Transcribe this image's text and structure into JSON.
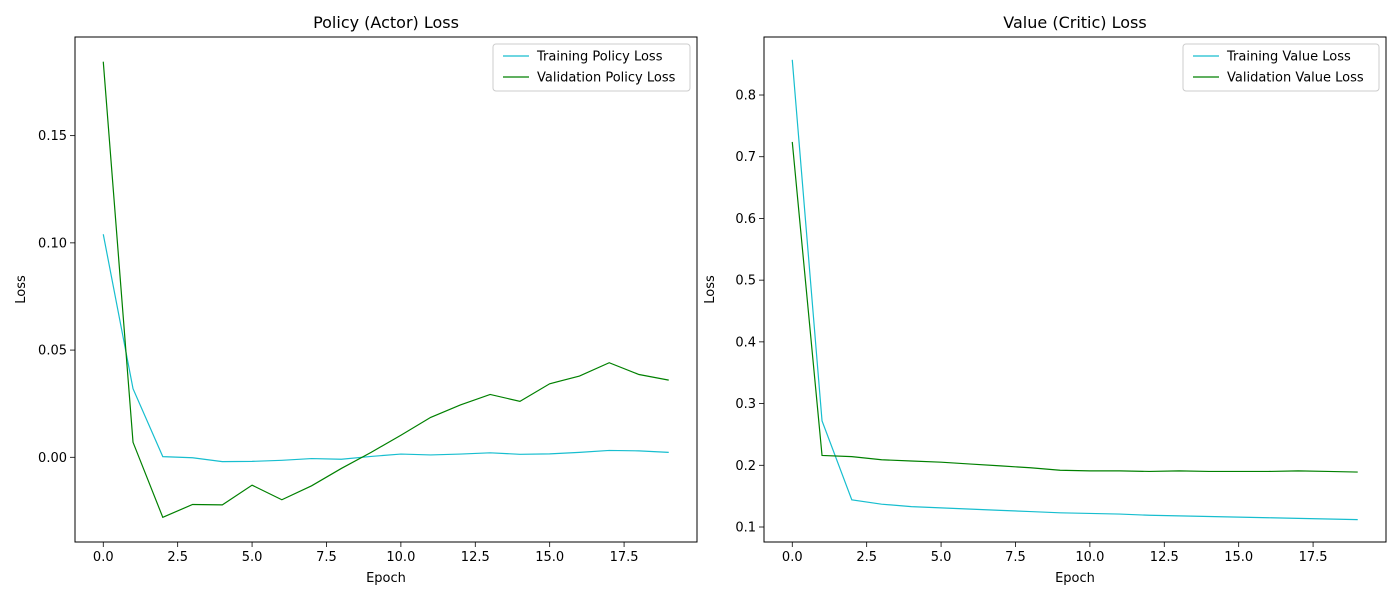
{
  "chart_data": [
    {
      "type": "line",
      "title": "Policy (Actor) Loss",
      "xlabel": "Epoch",
      "ylabel": "Loss",
      "xlim": [
        -0.95,
        19.95
      ],
      "ylim": [
        -0.0395,
        0.196
      ],
      "xticks": [
        0.0,
        2.5,
        5.0,
        7.5,
        10.0,
        12.5,
        15.0,
        17.5
      ],
      "xtick_labels": [
        "0.0",
        "2.5",
        "5.0",
        "7.5",
        "10.0",
        "12.5",
        "15.0",
        "17.5"
      ],
      "yticks": [
        0.0,
        0.05,
        0.1,
        0.15
      ],
      "ytick_labels": [
        "0.00",
        "0.05",
        "0.10",
        "0.15"
      ],
      "legend_position": "top-right",
      "x": [
        0,
        1,
        2,
        3,
        4,
        5,
        6,
        7,
        8,
        9,
        10,
        11,
        12,
        13,
        14,
        15,
        16,
        17,
        18,
        19
      ],
      "series": [
        {
          "name": "Training Policy Loss",
          "color": "#17becf",
          "values": [
            0.104,
            0.032,
            0.0003,
            -0.0002,
            -0.002,
            -0.0019,
            -0.0014,
            -0.0006,
            -0.0009,
            0.0004,
            0.0015,
            0.0011,
            0.0015,
            0.0021,
            0.0014,
            0.0016,
            0.0023,
            0.0032,
            0.003,
            0.0023
          ]
        },
        {
          "name": "Validation Policy Loss",
          "color": "#008000",
          "values": [
            0.1845,
            0.007,
            -0.028,
            -0.022,
            -0.0222,
            -0.013,
            -0.0198,
            -0.0133,
            -0.0052,
            0.0023,
            0.0103,
            0.0186,
            0.0244,
            0.0293,
            0.0261,
            0.0343,
            0.0379,
            0.0441,
            0.0386,
            0.036
          ]
        }
      ]
    },
    {
      "type": "line",
      "title": "Value (Critic) Loss",
      "xlabel": "Epoch",
      "ylabel": "Loss",
      "xlim": [
        -0.95,
        19.95
      ],
      "ylim": [
        0.0757,
        0.894
      ],
      "xticks": [
        0.0,
        2.5,
        5.0,
        7.5,
        10.0,
        12.5,
        15.0,
        17.5
      ],
      "xtick_labels": [
        "0.0",
        "2.5",
        "5.0",
        "7.5",
        "10.0",
        "12.5",
        "15.0",
        "17.5"
      ],
      "yticks": [
        0.1,
        0.2,
        0.3,
        0.4,
        0.5,
        0.6,
        0.7,
        0.8
      ],
      "ytick_labels": [
        "0.1",
        "0.2",
        "0.3",
        "0.4",
        "0.5",
        "0.6",
        "0.7",
        "0.8"
      ],
      "legend_position": "top-right",
      "x": [
        0,
        1,
        2,
        3,
        4,
        5,
        6,
        7,
        8,
        9,
        10,
        11,
        12,
        13,
        14,
        15,
        16,
        17,
        18,
        19
      ],
      "series": [
        {
          "name": "Training Value Loss",
          "color": "#17becf",
          "values": [
            0.857,
            0.272,
            0.144,
            0.137,
            0.133,
            0.131,
            0.129,
            0.127,
            0.125,
            0.123,
            0.122,
            0.121,
            0.119,
            0.118,
            0.117,
            0.116,
            0.115,
            0.114,
            0.113,
            0.112
          ]
        },
        {
          "name": "Validation Value Loss",
          "color": "#008000",
          "values": [
            0.724,
            0.216,
            0.214,
            0.209,
            0.207,
            0.205,
            0.202,
            0.199,
            0.196,
            0.192,
            0.191,
            0.191,
            0.19,
            0.191,
            0.19,
            0.19,
            0.19,
            0.191,
            0.19,
            0.189
          ]
        }
      ]
    }
  ]
}
